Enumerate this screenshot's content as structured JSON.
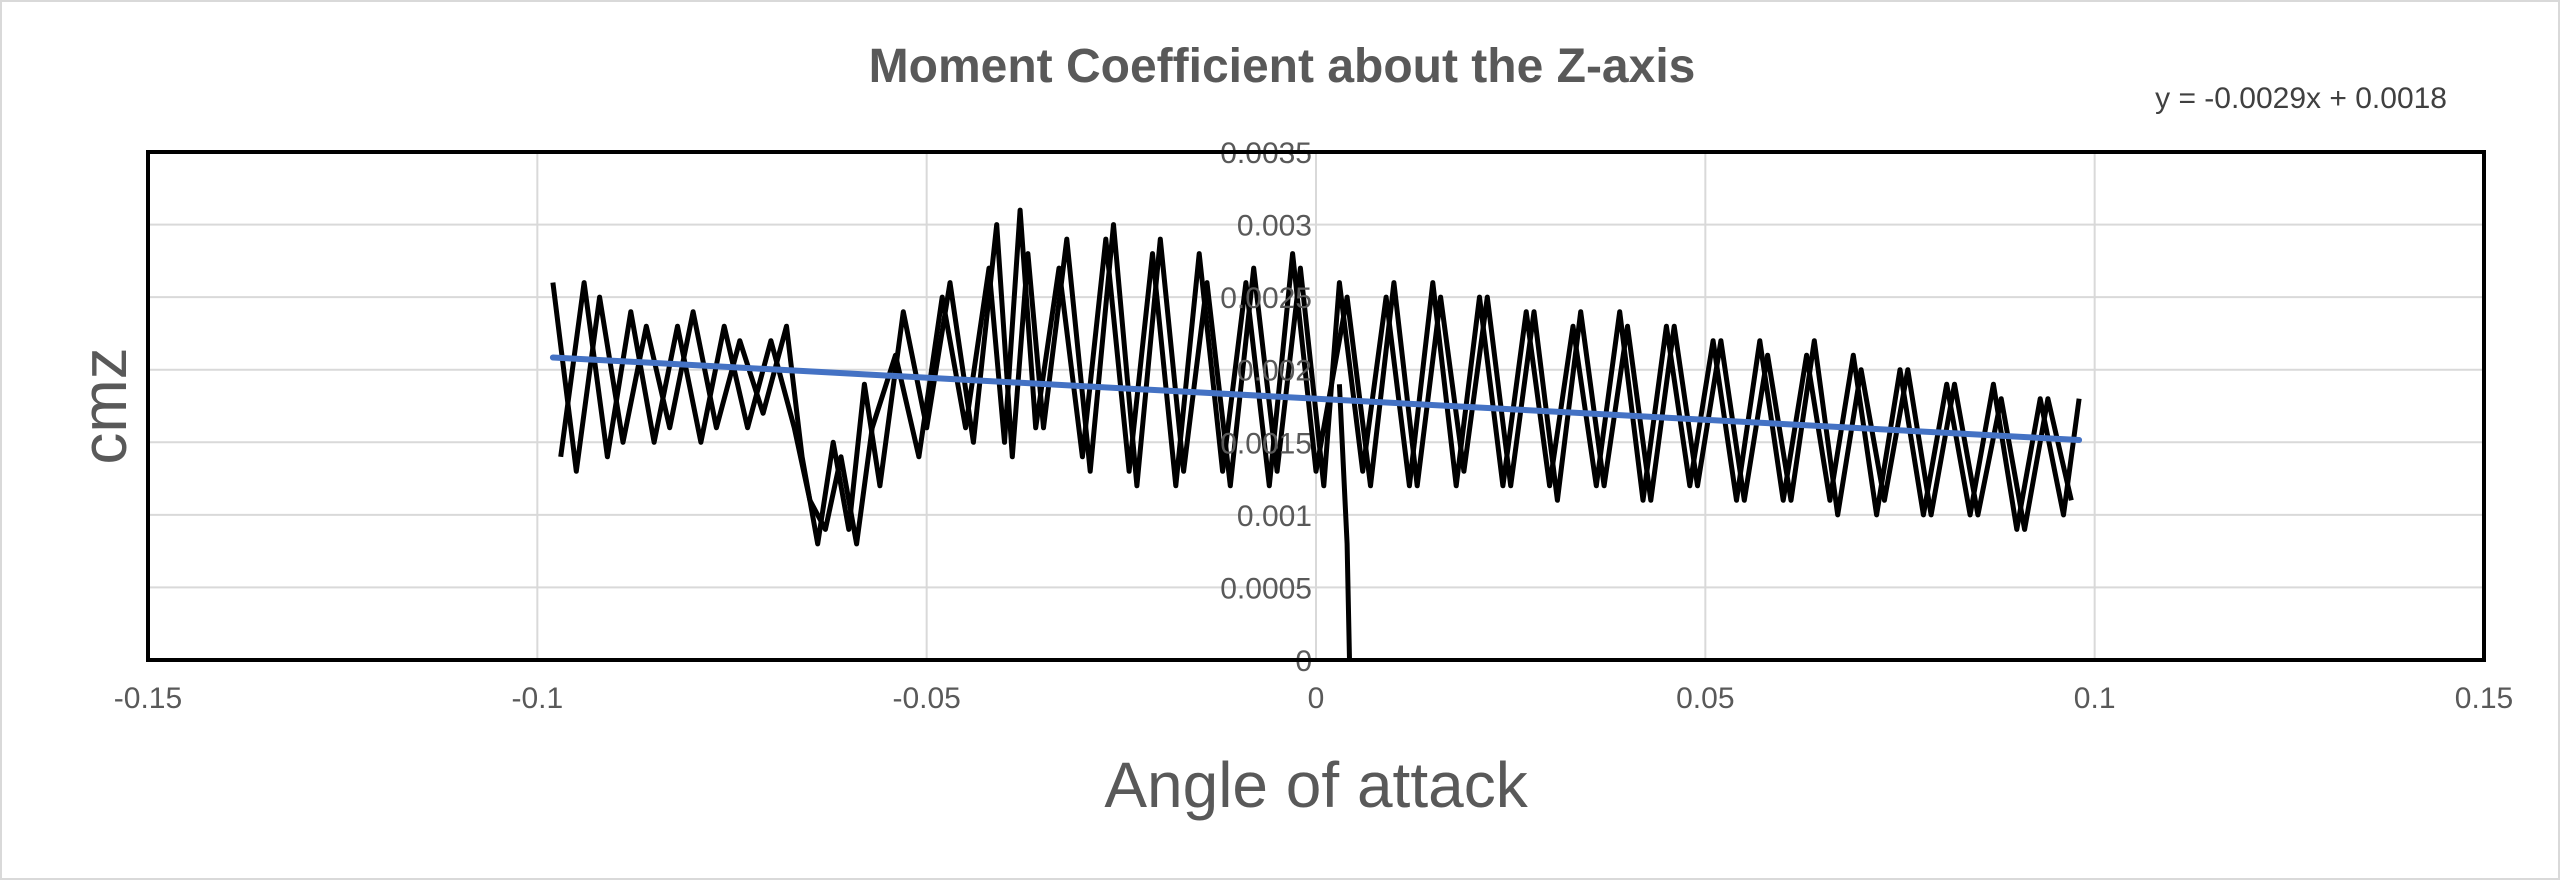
{
  "chart_data": {
    "type": "line",
    "title": "Moment Coefficient about the Z-axis",
    "xlabel": "Angle of attack",
    "ylabel": "cmz",
    "xlim": [
      -0.15,
      0.15
    ],
    "ylim": [
      0,
      0.0035
    ],
    "x_ticks": [
      "-0.15",
      "-0.1",
      "-0.05",
      "0",
      "0.05",
      "0.1",
      "0.15"
    ],
    "y_ticks": [
      "0",
      "0.0005",
      "0.001",
      "0.0015",
      "0.002",
      "0.0025",
      "0.003",
      "0.0035"
    ],
    "grid": true,
    "legend": "none",
    "trendline": {
      "equation": "y = -0.0029x + 0.0018",
      "slope": -0.0029,
      "intercept": 0.0018,
      "x_range": [
        -0.098,
        0.098
      ],
      "color": "#4472c4"
    },
    "series": [
      {
        "color": "#000000",
        "x": [
          -0.098,
          -0.095,
          -0.092,
          -0.089,
          -0.086,
          -0.083,
          -0.08,
          -0.077,
          -0.074,
          -0.071,
          -0.068,
          -0.066,
          -0.064,
          -0.062,
          -0.06,
          -0.058,
          -0.056,
          -0.053,
          -0.05,
          -0.047,
          -0.044,
          -0.041,
          -0.039,
          -0.037,
          -0.035,
          -0.032,
          -0.029,
          -0.026,
          -0.023,
          -0.02,
          -0.017,
          -0.014,
          -0.011,
          -0.008,
          -0.005,
          -0.002,
          0.001,
          0.003,
          0.006,
          0.009,
          0.012,
          0.015,
          0.018,
          0.021,
          0.024,
          0.027,
          0.03,
          0.033,
          0.036,
          0.039,
          0.042,
          0.045,
          0.048,
          0.051,
          0.054,
          0.057,
          0.06,
          0.063,
          0.066,
          0.069,
          0.072,
          0.075,
          0.078,
          0.081,
          0.084,
          0.087,
          0.09,
          0.093,
          0.096,
          0.098
        ],
        "y": [
          0.0026,
          0.0013,
          0.0025,
          0.0015,
          0.0023,
          0.0016,
          0.0024,
          0.0016,
          0.0022,
          0.0017,
          0.0023,
          0.0014,
          0.0008,
          0.0015,
          0.0009,
          0.0019,
          0.0012,
          0.0024,
          0.0016,
          0.0026,
          0.0015,
          0.003,
          0.0014,
          0.0028,
          0.0016,
          0.0029,
          0.0013,
          0.003,
          0.0012,
          0.0029,
          0.0013,
          0.0026,
          0.0012,
          0.0027,
          0.0013,
          0.0027,
          0.0012,
          0.0026,
          0.0013,
          0.0025,
          0.0012,
          0.0026,
          0.0012,
          0.0025,
          0.0012,
          0.0024,
          0.0012,
          0.0023,
          0.0012,
          0.0024,
          0.0011,
          0.0023,
          0.0012,
          0.0022,
          0.0011,
          0.0022,
          0.0011,
          0.0021,
          0.0011,
          0.0021,
          0.001,
          0.002,
          0.001,
          0.0019,
          0.001,
          0.0019,
          0.0009,
          0.0018,
          0.001,
          0.0018
        ]
      },
      {
        "color": "#000000",
        "x": [
          -0.097,
          -0.094,
          -0.091,
          -0.088,
          -0.085,
          -0.082,
          -0.079,
          -0.076,
          -0.073,
          -0.07,
          -0.067,
          -0.065,
          -0.063,
          -0.061,
          -0.059,
          -0.057,
          -0.054,
          -0.051,
          -0.048,
          -0.045,
          -0.042,
          -0.04,
          -0.038,
          -0.036,
          -0.033,
          -0.03,
          -0.027,
          -0.024,
          -0.021,
          -0.018,
          -0.015,
          -0.012,
          -0.009,
          -0.006,
          -0.003,
          0.0,
          0.004,
          0.007,
          0.01,
          0.013,
          0.016,
          0.019,
          0.022,
          0.025,
          0.028,
          0.031,
          0.034,
          0.037,
          0.04,
          0.043,
          0.046,
          0.049,
          0.052,
          0.055,
          0.058,
          0.061,
          0.064,
          0.067,
          0.07,
          0.073,
          0.076,
          0.079,
          0.082,
          0.085,
          0.088,
          0.091,
          0.094,
          0.097
        ],
        "y": [
          0.0014,
          0.0026,
          0.0014,
          0.0024,
          0.0015,
          0.0023,
          0.0015,
          0.0023,
          0.0016,
          0.0022,
          0.0016,
          0.0011,
          0.0009,
          0.0014,
          0.0008,
          0.0016,
          0.0021,
          0.0014,
          0.0025,
          0.0016,
          0.0027,
          0.0015,
          0.0031,
          0.0016,
          0.0027,
          0.0014,
          0.0029,
          0.0013,
          0.0028,
          0.0012,
          0.0028,
          0.0013,
          0.0026,
          0.0012,
          0.0028,
          0.0013,
          0.0025,
          0.0012,
          0.0026,
          0.0012,
          0.0025,
          0.0013,
          0.0025,
          0.0012,
          0.0024,
          0.0011,
          0.0024,
          0.0012,
          0.0023,
          0.0011,
          0.0023,
          0.0012,
          0.0022,
          0.0011,
          0.0021,
          0.0011,
          0.0022,
          0.001,
          0.002,
          0.0011,
          0.002,
          0.001,
          0.0019,
          0.001,
          0.0018,
          0.0009,
          0.0018,
          0.0011
        ]
      },
      {
        "color": "#000000",
        "x": [
          0.003,
          0.004,
          0.0043
        ],
        "y": [
          0.0019,
          0.0008,
          0.0
        ]
      }
    ]
  }
}
